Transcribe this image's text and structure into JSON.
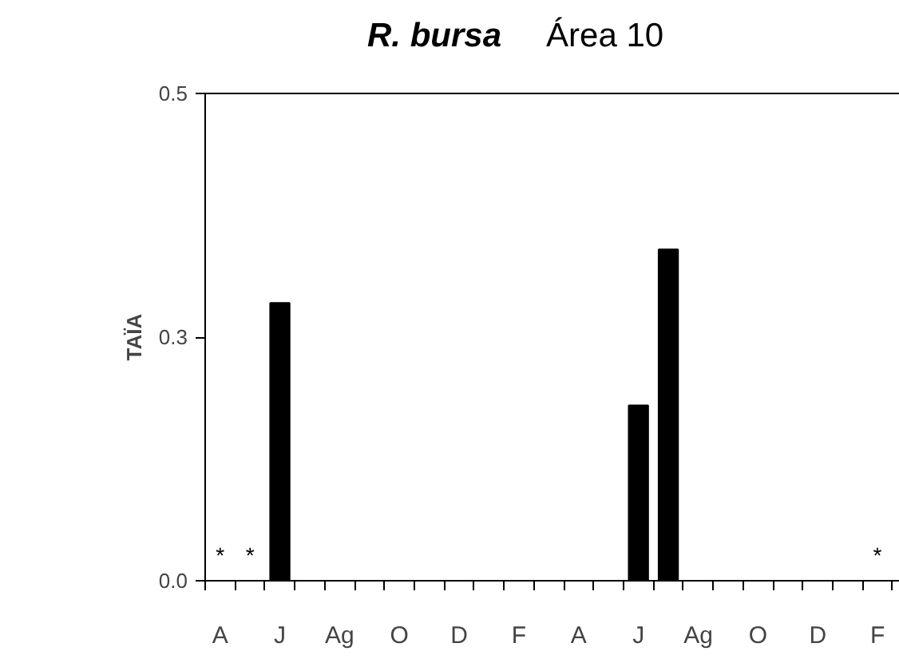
{
  "chart_data": {
    "type": "bar",
    "title": "R. bursa",
    "subtitle": "Área 10",
    "ylabel": "TAÏA",
    "categories": [
      "A",
      null,
      "J",
      null,
      "Ag",
      null,
      "O",
      null,
      "D",
      null,
      "F",
      null,
      "A",
      null,
      "J",
      null,
      "Ag",
      null,
      "O",
      null,
      "D",
      null,
      "F"
    ],
    "values": [
      0,
      0,
      0.285,
      0,
      0,
      0,
      0,
      0,
      0,
      0,
      0,
      0,
      0,
      0,
      0.18,
      0.34,
      0,
      0,
      0,
      0,
      0,
      0,
      0
    ],
    "value_labels": [
      "*",
      "*",
      null,
      null,
      null,
      null,
      null,
      null,
      null,
      null,
      null,
      null,
      null,
      null,
      null,
      null,
      null,
      null,
      null,
      null,
      null,
      null,
      "*"
    ],
    "color": "#000000",
    "ylim": [
      0,
      0.5
    ],
    "yticks": [
      {
        "value": 0,
        "label": "0.0"
      },
      {
        "value": 0.25,
        "label": "0.3"
      },
      {
        "value": 0.5,
        "label": "0.5"
      }
    ],
    "grid": false
  }
}
